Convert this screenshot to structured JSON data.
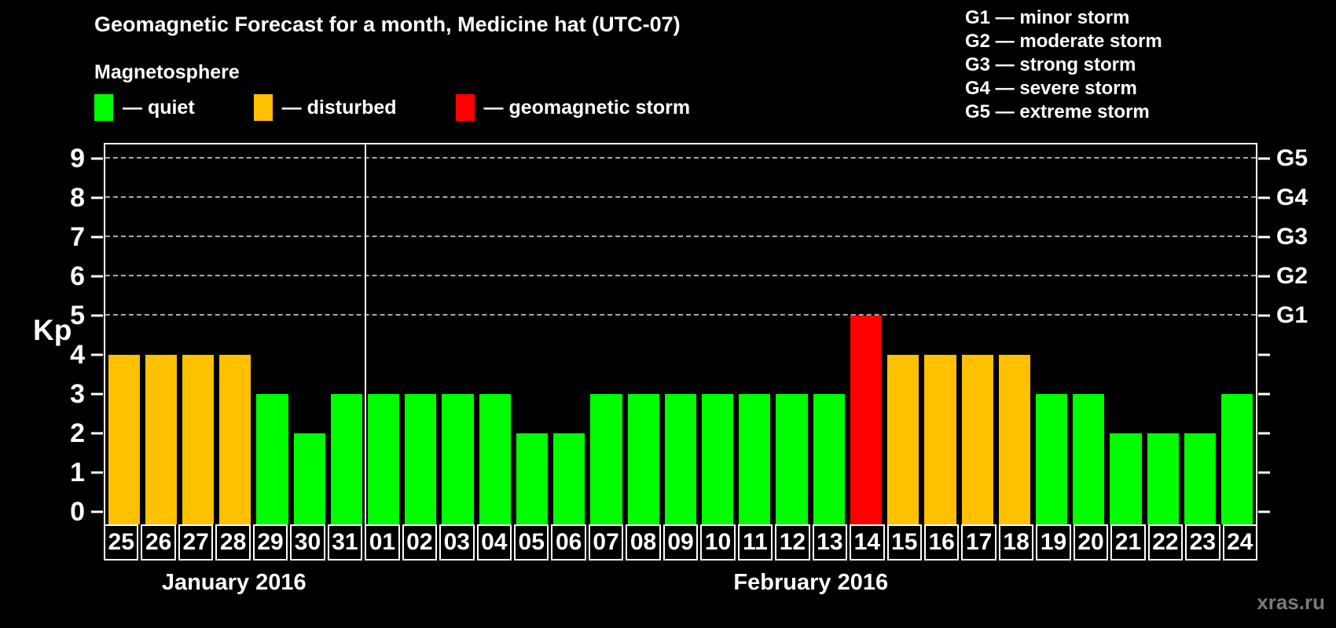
{
  "title": "Geomagnetic Forecast for a month, Medicine hat (UTC-07)",
  "legend": {
    "heading": "Magnetosphere",
    "items": [
      {
        "icon": "quiet-swatch-icon",
        "label": "— quiet",
        "status": "quiet"
      },
      {
        "icon": "disturbed-swatch-icon",
        "label": "— disturbed",
        "status": "disturbed"
      },
      {
        "icon": "storm-swatch-icon",
        "label": "— geomagnetic storm",
        "status": "storm"
      }
    ]
  },
  "storm_scale_legend": [
    "G1 — minor storm",
    "G2 — moderate storm",
    "G3 — strong storm",
    "G4 — severe storm",
    "G5 — extreme storm"
  ],
  "watermark": "xras.ru",
  "chart_data": {
    "type": "bar",
    "title": "Geomagnetic Forecast for a month, Medicine hat (UTC-07)",
    "ylabel": "Kp",
    "ylim": [
      0,
      9.4
    ],
    "yticks": [
      0,
      1,
      2,
      3,
      4,
      5,
      6,
      7,
      8,
      9
    ],
    "right_axis_ticks": [
      {
        "kp": 5,
        "label": "G1"
      },
      {
        "kp": 6,
        "label": "G2"
      },
      {
        "kp": 7,
        "label": "G3"
      },
      {
        "kp": 8,
        "label": "G4"
      },
      {
        "kp": 9,
        "label": "G5"
      }
    ],
    "gridline_levels": [
      5,
      6,
      7,
      8,
      9
    ],
    "grid": "dashed horizontal lines at storm levels only",
    "legend_position": "top-left",
    "status_colors": {
      "quiet": "#00ff00",
      "disturbed": "#ffc000",
      "storm": "#ff0000"
    },
    "axis_color": "#ffffff",
    "background_color": "#000000",
    "months": [
      {
        "label": "January 2016",
        "days_count": 7
      },
      {
        "label": "February 2016",
        "days_count": 24
      }
    ],
    "bars": [
      {
        "month": "January 2016",
        "day": "25",
        "kp": 4,
        "status": "disturbed"
      },
      {
        "month": "January 2016",
        "day": "26",
        "kp": 4,
        "status": "disturbed"
      },
      {
        "month": "January 2016",
        "day": "27",
        "kp": 4,
        "status": "disturbed"
      },
      {
        "month": "January 2016",
        "day": "28",
        "kp": 4,
        "status": "disturbed"
      },
      {
        "month": "January 2016",
        "day": "29",
        "kp": 3,
        "status": "quiet"
      },
      {
        "month": "January 2016",
        "day": "30",
        "kp": 2,
        "status": "quiet"
      },
      {
        "month": "January 2016",
        "day": "31",
        "kp": 3,
        "status": "quiet"
      },
      {
        "month": "February 2016",
        "day": "01",
        "kp": 3,
        "status": "quiet"
      },
      {
        "month": "February 2016",
        "day": "02",
        "kp": 3,
        "status": "quiet"
      },
      {
        "month": "February 2016",
        "day": "03",
        "kp": 3,
        "status": "quiet"
      },
      {
        "month": "February 2016",
        "day": "04",
        "kp": 3,
        "status": "quiet"
      },
      {
        "month": "February 2016",
        "day": "05",
        "kp": 2,
        "status": "quiet"
      },
      {
        "month": "February 2016",
        "day": "06",
        "kp": 2,
        "status": "quiet"
      },
      {
        "month": "February 2016",
        "day": "07",
        "kp": 3,
        "status": "quiet"
      },
      {
        "month": "February 2016",
        "day": "08",
        "kp": 3,
        "status": "quiet"
      },
      {
        "month": "February 2016",
        "day": "09",
        "kp": 3,
        "status": "quiet"
      },
      {
        "month": "February 2016",
        "day": "10",
        "kp": 3,
        "status": "quiet"
      },
      {
        "month": "February 2016",
        "day": "11",
        "kp": 3,
        "status": "quiet"
      },
      {
        "month": "February 2016",
        "day": "12",
        "kp": 3,
        "status": "quiet"
      },
      {
        "month": "February 2016",
        "day": "13",
        "kp": 3,
        "status": "quiet"
      },
      {
        "month": "February 2016",
        "day": "14",
        "kp": 5,
        "status": "storm"
      },
      {
        "month": "February 2016",
        "day": "15",
        "kp": 4,
        "status": "disturbed"
      },
      {
        "month": "February 2016",
        "day": "16",
        "kp": 4,
        "status": "disturbed"
      },
      {
        "month": "February 2016",
        "day": "17",
        "kp": 4,
        "status": "disturbed"
      },
      {
        "month": "February 2016",
        "day": "18",
        "kp": 4,
        "status": "disturbed"
      },
      {
        "month": "February 2016",
        "day": "19",
        "kp": 3,
        "status": "quiet"
      },
      {
        "month": "February 2016",
        "day": "20",
        "kp": 3,
        "status": "quiet"
      },
      {
        "month": "February 2016",
        "day": "21",
        "kp": 2,
        "status": "quiet"
      },
      {
        "month": "February 2016",
        "day": "22",
        "kp": 2,
        "status": "quiet"
      },
      {
        "month": "February 2016",
        "day": "23",
        "kp": 2,
        "status": "quiet"
      },
      {
        "month": "February 2016",
        "day": "24",
        "kp": 3,
        "status": "quiet"
      }
    ]
  }
}
